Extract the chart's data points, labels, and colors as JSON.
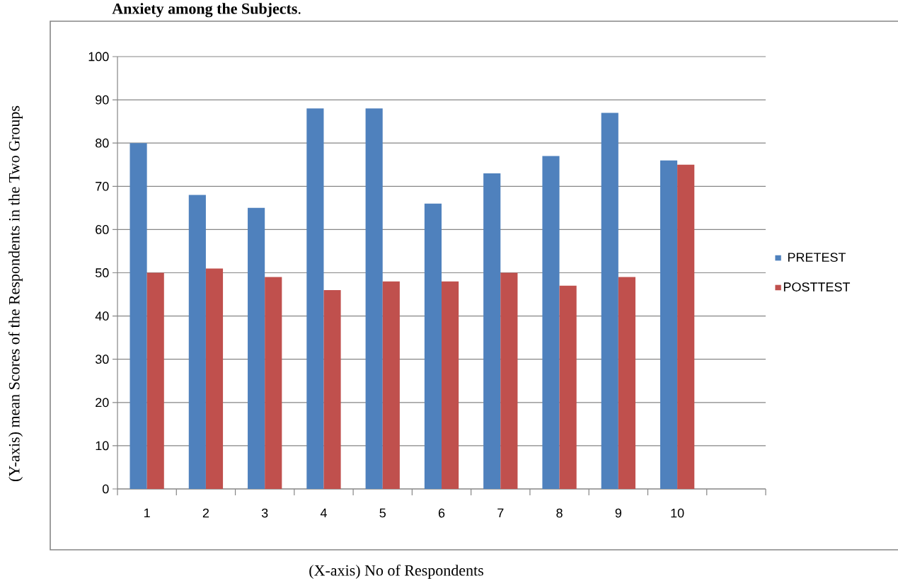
{
  "chart_data": {
    "type": "bar",
    "title": "**Anxiety among the Subjects**.",
    "xlabel": "(X-axis) No of Respondents",
    "ylabel": "(Y-axis) mean Scores of the Respondents in the Two Groups",
    "categories": [
      "1",
      "2",
      "3",
      "4",
      "5",
      "6",
      "7",
      "8",
      "9",
      "10",
      null
    ],
    "series": [
      {
        "name": "PRETEST",
        "color": "#4f81bd",
        "values": [
          80,
          68,
          65,
          88,
          88,
          66,
          73,
          77,
          87,
          76,
          null
        ]
      },
      {
        "name": "POSTTEST",
        "color": "#c0504d",
        "values": [
          50,
          51,
          49,
          46,
          48,
          48,
          50,
          47,
          49,
          75,
          null
        ]
      }
    ],
    "ylim": [
      0,
      100
    ],
    "yticks": [
      0,
      10,
      20,
      30,
      40,
      50,
      60,
      70,
      80,
      90,
      100
    ],
    "grid": "y",
    "legend": "right"
  }
}
